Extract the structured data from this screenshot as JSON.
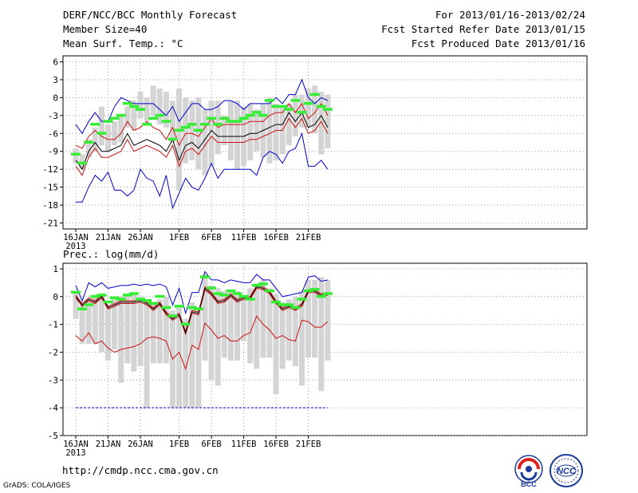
{
  "header": {
    "title": "DERF/NCC/BCC Monthly Forecast",
    "member_size": "Member Size=40",
    "variable1": "Mean Surf. Temp.: °C",
    "forecast_period": "For 2013/01/16-2013/02/24",
    "started_refer": "Fcst Started Refer Date 2013/01/15",
    "produced": "Fcst Produced Date 2013/01/16"
  },
  "footer": {
    "url": "http://cmdp.ncc.cma.gov.cn",
    "grads": "GrADS: COLA/IGES",
    "logo_left_text": "BCC",
    "logo_right_text": "NCC"
  },
  "colors": {
    "box": "#d4d4d4",
    "green": "#33ee33",
    "blue": "#0000cc",
    "red": "#cc1111",
    "black": "#000000",
    "grid": "#888888"
  },
  "chart_data": [
    {
      "type": "box",
      "title": "Mean Surf. Temp.: °C",
      "xlabel_ticks": [
        "16JAN",
        "21JAN",
        "26JAN",
        "1FEB",
        "6FEB",
        "11FEB",
        "16FEB",
        "21FEB"
      ],
      "x_year_label": "2013",
      "x_tick_days": [
        0,
        5,
        10,
        16,
        21,
        26,
        31,
        36
      ],
      "days": 40,
      "ylim": [
        -22,
        7
      ],
      "y_ticks": [
        6,
        3,
        0,
        -3,
        -6,
        -9,
        -12,
        -15,
        -18,
        -21
      ],
      "series": {
        "box_top": [
          -8.5,
          -9.5,
          -7,
          -5,
          -1.5,
          -4.5,
          -4,
          -3,
          -1.5,
          -0.5,
          1,
          0,
          2,
          1.5,
          1,
          -0.5,
          1.5,
          0,
          -0.5,
          0,
          -2,
          -0.5,
          -0.5,
          -3,
          -0.5,
          -0.5,
          -1.5,
          -1,
          -2,
          -1,
          0,
          -1,
          -1.5,
          -1,
          0.5,
          0.5,
          1.5,
          2,
          1,
          0.5
        ],
        "box_bottom": [
          -11,
          -12,
          -10,
          -9,
          -8,
          -9,
          -8,
          -7.5,
          -5,
          -5.5,
          -3.5,
          -4,
          -3,
          -4.5,
          -5,
          -7.5,
          -15.5,
          -11,
          -10.5,
          -12,
          -13,
          -11.5,
          -9.5,
          -8,
          -10.5,
          -12,
          -11.5,
          -10.5,
          -9,
          -10,
          -11,
          -10.5,
          -9.5,
          -8,
          -6.5,
          -5,
          -5,
          -6,
          -9.5,
          -8.5
        ],
        "ensemble_mean": [
          -9.5,
          -11,
          -7.5,
          -4.5,
          -6,
          -4,
          -3.5,
          -3,
          -1,
          -1.5,
          -2,
          -4.5,
          -3.5,
          -3,
          -4,
          -7,
          -5.5,
          -5,
          -4.5,
          -5.5,
          -4.5,
          -3.5,
          -4.5,
          -3.5,
          -4,
          -4,
          -3.5,
          -3,
          -2.5,
          -3,
          -0.5,
          -1.5,
          -1.5,
          -2,
          -0.5,
          -2.5,
          -1,
          0.5,
          -1.5,
          -2
        ],
        "max": [
          -4.5,
          -6,
          -4,
          -2.5,
          -4,
          -4,
          -1.5,
          0,
          -0.5,
          -1,
          -1,
          -1,
          -1,
          -2,
          -3,
          -1.5,
          -4,
          -2.5,
          -1,
          -1,
          -2,
          -2,
          -1.5,
          -0.5,
          -0.5,
          -1,
          -2,
          -1,
          -1,
          -1,
          -1,
          0,
          -1,
          0.5,
          0.5,
          3,
          0,
          -1,
          0,
          -0.5
        ],
        "upper": [
          -8,
          -8.5,
          -6.5,
          -5.5,
          -6.5,
          -7,
          -7,
          -6,
          -4,
          -5.5,
          -5,
          -4,
          -5,
          -5.5,
          -7,
          -5,
          -8,
          -6,
          -6,
          -6.5,
          -5,
          -3.5,
          -5,
          -4.5,
          -4.5,
          -4.5,
          -4.5,
          -4,
          -4,
          -4,
          -3,
          -2.5,
          -2.5,
          -1,
          -2.5,
          -1,
          -3.5,
          -2.5,
          -1,
          -3
        ],
        "median": [
          -10.5,
          -12,
          -9,
          -7.5,
          -9,
          -9,
          -8.5,
          -8,
          -6,
          -8,
          -7.5,
          -7,
          -7.5,
          -8,
          -9,
          -7,
          -10.5,
          -8,
          -7.5,
          -8.5,
          -7,
          -5.5,
          -6.5,
          -6.5,
          -6.5,
          -6.5,
          -6.5,
          -6,
          -6,
          -5.5,
          -5,
          -4.5,
          -4.5,
          -2.5,
          -4,
          -2.5,
          -5,
          -4.5,
          -3,
          -5
        ],
        "lower": [
          -11.5,
          -13,
          -10,
          -8.5,
          -10,
          -10,
          -9.5,
          -9,
          -7,
          -9,
          -8.5,
          -8,
          -8.5,
          -9,
          -10,
          -8,
          -11.5,
          -9,
          -8.5,
          -9.5,
          -8,
          -6.5,
          -7.5,
          -7.5,
          -7.5,
          -7.5,
          -7.5,
          -7,
          -7,
          -6.5,
          -6,
          -5.5,
          -5.5,
          -3.5,
          -5,
          -3.5,
          -6,
          -5.5,
          -4,
          -6
        ],
        "min": [
          -17.5,
          -17.5,
          -15,
          -13,
          -14,
          -12.5,
          -15.5,
          -15.5,
          -16.5,
          -15.5,
          -12,
          -13.5,
          -14,
          -16.5,
          -13,
          -18.5,
          -16,
          -13.5,
          -15,
          -15.5,
          -13.5,
          -11,
          -13.5,
          -12,
          -12,
          -12,
          -12,
          -12,
          -13,
          -10,
          -9,
          -9.5,
          -11,
          -9,
          -8.5,
          -6,
          -11.5,
          -11.5,
          -10.5,
          -12
        ]
      }
    },
    {
      "type": "box",
      "title": "Prec.: log(mm/d)",
      "xlabel_ticks": [
        "16JAN",
        "21JAN",
        "26JAN",
        "1FEB",
        "6FEB",
        "11FEB",
        "16FEB",
        "21FEB"
      ],
      "x_year_label": "2013",
      "x_tick_days": [
        0,
        5,
        10,
        16,
        21,
        26,
        31,
        36
      ],
      "days": 40,
      "ylim": [
        -5,
        1.2
      ],
      "y_ticks": [
        1,
        0,
        -1,
        -2,
        -3,
        -4,
        -5
      ],
      "series": {
        "box_top": [
          0.2,
          -0.3,
          -0.1,
          0,
          0.05,
          -0.3,
          0,
          0,
          0.1,
          0.1,
          0,
          -0.15,
          -0.2,
          -0.1,
          0,
          -0.5,
          -0.35,
          -0.8,
          -0.2,
          -0.5,
          0.8,
          0.4,
          0.3,
          0.2,
          0.2,
          0.2,
          0,
          0.3,
          0.4,
          0.6,
          0.3,
          0.1,
          -0.2,
          -0.1,
          0,
          0.2,
          0.6,
          0.6,
          0.7,
          0.6
        ],
        "box_bottom": [
          -0.8,
          -1.7,
          -1.7,
          -1.7,
          -2,
          -2.3,
          -1.9,
          -3.1,
          -2.4,
          -2.7,
          -2.5,
          -4,
          -2.4,
          -2.4,
          -2.4,
          -4,
          -4,
          -4,
          -4,
          -4,
          -2.3,
          -3,
          -3.2,
          -2.2,
          -2.3,
          -2.3,
          -1.6,
          -2.4,
          -2.6,
          -2.2,
          -2.2,
          -3.5,
          -2.6,
          -2.3,
          -2.5,
          -3.2,
          -2.2,
          -2.2,
          -3.4,
          -2.3
        ],
        "ensemble_mean": [
          0.15,
          -0.45,
          -0.3,
          0,
          0.05,
          -0.2,
          -0.05,
          -0.1,
          0.05,
          0.1,
          -0.1,
          -0.15,
          -0.25,
          0,
          -0.4,
          -0.7,
          -0.35,
          -1,
          -0.4,
          -0.45,
          0.7,
          0.3,
          0.1,
          0.05,
          0.2,
          0.1,
          0,
          -0.1,
          0.4,
          0.45,
          0.2,
          -0.2,
          -0.3,
          -0.3,
          -0.4,
          -0.1,
          0.2,
          0.25,
          0,
          0.1
        ],
        "max": [
          0.4,
          -0.15,
          0.5,
          0.35,
          0.5,
          0.3,
          0.35,
          0.4,
          0.4,
          0.45,
          0.4,
          0.45,
          0.4,
          0.45,
          0.35,
          -0.3,
          0.3,
          -0.6,
          0.15,
          0.15,
          0.9,
          0.6,
          0.6,
          0.5,
          0.6,
          0.55,
          0.5,
          0.5,
          0.8,
          0.6,
          0.6,
          0.3,
          0,
          0.05,
          0.1,
          0.15,
          0.7,
          0.75,
          0.55,
          0.6
        ],
        "median": [
          0,
          -0.3,
          -0.1,
          -0.2,
          0,
          -0.4,
          -0.3,
          -0.2,
          -0.2,
          -0.2,
          -0.15,
          -0.25,
          -0.45,
          -0.25,
          -0.6,
          -0.8,
          -0.65,
          -1.3,
          -0.55,
          -0.6,
          0.3,
          0.1,
          -0.2,
          -0.15,
          0.05,
          -0.15,
          -0.05,
          -0.05,
          0.35,
          0.3,
          0.15,
          -0.2,
          -0.45,
          -0.35,
          -0.45,
          -0.3,
          0.2,
          0.2,
          0.05,
          0.1
        ],
        "upper": [
          0.05,
          -0.25,
          -0.05,
          -0.15,
          0.05,
          -0.35,
          -0.25,
          -0.15,
          -0.15,
          -0.15,
          -0.1,
          -0.2,
          -0.4,
          -0.2,
          -0.55,
          -0.75,
          -0.6,
          -1.25,
          -0.5,
          -0.55,
          0.35,
          0.15,
          -0.15,
          -0.1,
          0.1,
          -0.1,
          0,
          0,
          0.4,
          0.35,
          0.2,
          -0.15,
          -0.4,
          -0.3,
          -0.4,
          -0.25,
          0.25,
          0.25,
          0.1,
          0.15
        ],
        "lower": [
          -0.05,
          -0.35,
          -0.15,
          -0.25,
          -0.05,
          -0.45,
          -0.35,
          -0.25,
          -0.25,
          -0.25,
          -0.2,
          -0.3,
          -0.5,
          -0.3,
          -0.65,
          -0.85,
          -0.7,
          -1.35,
          -0.6,
          -0.65,
          0.25,
          0.05,
          -0.25,
          -0.2,
          0,
          -0.2,
          -0.1,
          -0.1,
          0.3,
          0.25,
          0.1,
          -0.25,
          -0.5,
          -0.4,
          -0.5,
          -0.35,
          0.15,
          0.15,
          0,
          0.05
        ],
        "min_red": [
          -1.4,
          -1.6,
          -1.3,
          -1.7,
          -1.6,
          -1.85,
          -2,
          -1.9,
          -1.85,
          -1.8,
          -1.7,
          -1.5,
          -1.45,
          -1.5,
          -1.6,
          -2.25,
          -2,
          -2.6,
          -1.75,
          -1.9,
          -0.95,
          -1.2,
          -1.5,
          -1.4,
          -1.6,
          -1.6,
          -1.4,
          -1.3,
          -0.7,
          -1,
          -1.2,
          -1.5,
          -1.4,
          -1.55,
          -1.6,
          -0.85,
          -0.9,
          -1.1,
          -1.1,
          -0.9
        ],
        "floor": -4
      }
    }
  ]
}
